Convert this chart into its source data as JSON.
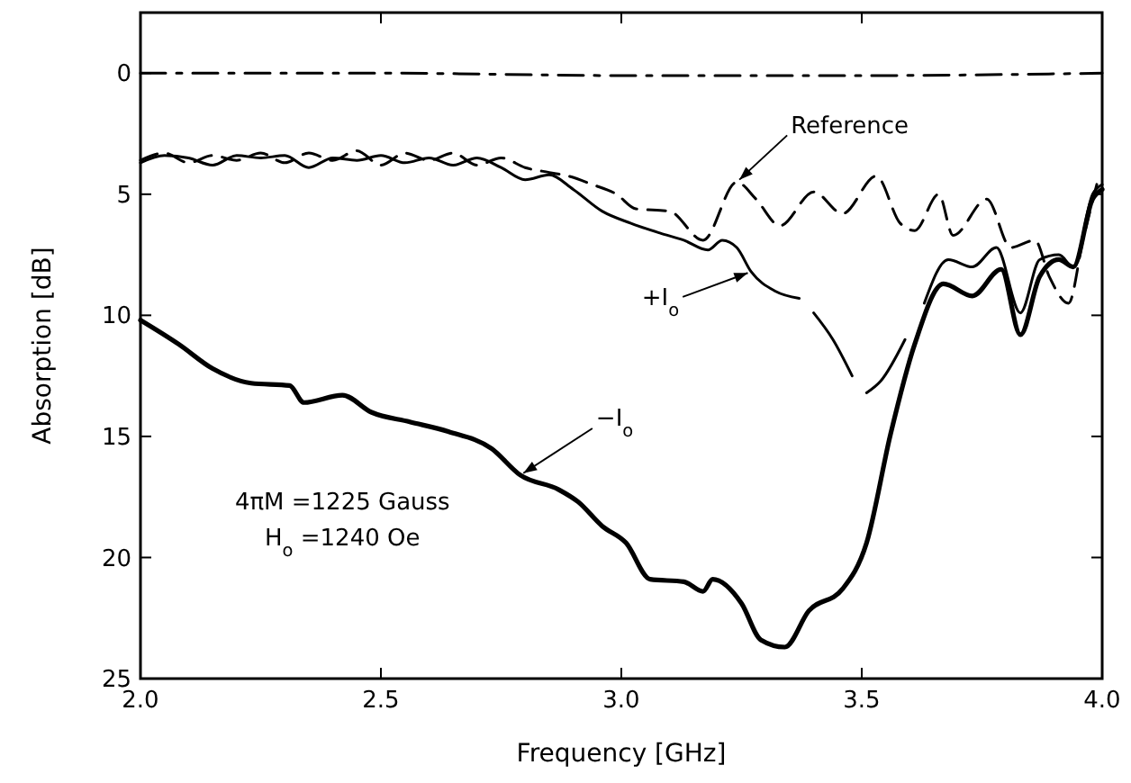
{
  "chart_data": {
    "type": "line",
    "xlabel": "Frequency [GHz]",
    "ylabel": "Absorption [dB]",
    "xlim": [
      2.0,
      4.0
    ],
    "xticks": [
      {
        "value": 2.0,
        "label": "2.0"
      },
      2.5,
      {
        "value": 3.0,
        "label": "3.0"
      },
      3.5,
      {
        "value": 4.0,
        "label": "4.0"
      }
    ],
    "ylim": [
      25,
      -2.5
    ],
    "yticks": [
      0,
      5,
      10,
      15,
      20,
      25
    ],
    "grid": false,
    "series": [
      {
        "color": "#000000",
        "line_style": "dashdot",
        "x": [
          2.0,
          2.5,
          3.0,
          3.5,
          4.0
        ],
        "values": [
          0,
          0,
          0.1,
          0.1,
          0
        ]
      },
      {
        "color": "#000000",
        "line_style": "dashed",
        "x": [
          2.0,
          2.05,
          2.1,
          2.15,
          2.2,
          2.25,
          2.3,
          2.35,
          2.4,
          2.45,
          2.5,
          2.55,
          2.6,
          2.65,
          2.7,
          2.75,
          2.8,
          2.85,
          2.89,
          2.94,
          2.99,
          3.03,
          3.1,
          3.17,
          3.24,
          3.28,
          3.33,
          3.4,
          3.46,
          3.53,
          3.58,
          3.61,
          3.66,
          3.69,
          3.76,
          3.81,
          3.86,
          3.89,
          3.93,
          3.96,
          3.99
        ],
        "values": [
          3.6,
          3.3,
          3.7,
          3.4,
          3.6,
          3.3,
          3.7,
          3.3,
          3.6,
          3.2,
          3.8,
          3.3,
          3.6,
          3.3,
          3.8,
          3.5,
          3.9,
          4.1,
          4.25,
          4.6,
          5.0,
          5.6,
          5.7,
          6.9,
          4.5,
          5.2,
          6.3,
          4.9,
          5.8,
          4.25,
          6.2,
          6.5,
          5.0,
          6.7,
          5.2,
          7.2,
          6.9,
          8.4,
          9.5,
          6.9,
          4.5
        ]
      },
      {
        "color": "#000000",
        "line_style": "solid",
        "x": [
          2.0,
          2.05,
          2.1,
          2.15,
          2.2,
          2.25,
          2.3,
          2.35,
          2.4,
          2.45,
          2.5,
          2.55,
          2.6,
          2.65,
          2.7,
          2.75,
          2.8,
          2.85,
          2.9,
          2.96,
          3.02,
          3.08,
          3.13,
          3.18,
          3.21,
          3.24,
          3.27,
          3.32,
          3.37,
          3.385,
          3.4,
          3.44,
          3.48,
          3.495,
          3.51,
          3.54,
          3.59,
          3.61,
          3.63,
          3.68,
          3.73,
          3.78,
          3.83,
          3.87,
          3.91,
          3.94,
          3.98,
          4.0
        ],
        "values": [
          3.7,
          3.4,
          3.5,
          3.8,
          3.4,
          3.5,
          3.4,
          3.9,
          3.5,
          3.6,
          3.4,
          3.7,
          3.5,
          3.8,
          3.5,
          3.9,
          4.4,
          4.2,
          4.8,
          5.7,
          6.2,
          6.6,
          6.9,
          7.3,
          6.9,
          7.2,
          8.2,
          9.0,
          9.3,
          null,
          9.9,
          11.0,
          12.5,
          null,
          13.2,
          12.7,
          11.0,
          null,
          9.5,
          7.7,
          8.0,
          7.2,
          9.9,
          7.7,
          7.5,
          8.0,
          5.0,
          4.6
        ]
      },
      {
        "color": "#000000",
        "line_style": "solid",
        "x": [
          2.0,
          2.08,
          2.15,
          2.23,
          2.31,
          2.34,
          2.42,
          2.48,
          2.56,
          2.64,
          2.73,
          2.79,
          2.87,
          2.91,
          2.96,
          3.01,
          3.06,
          3.13,
          3.17,
          3.19,
          3.25,
          3.29,
          3.34,
          3.39,
          3.46,
          3.51,
          3.56,
          3.61,
          3.67,
          3.73,
          3.79,
          3.83,
          3.87,
          3.91,
          3.94,
          3.98,
          4.0
        ],
        "values": [
          10.2,
          11.2,
          12.2,
          12.8,
          12.9,
          13.6,
          13.3,
          14.0,
          14.4,
          14.8,
          15.5,
          16.6,
          17.2,
          17.7,
          18.7,
          19.4,
          20.9,
          21.0,
          21.4,
          20.9,
          21.9,
          23.4,
          23.7,
          22.2,
          21.3,
          19.4,
          14.9,
          11.2,
          8.7,
          9.2,
          8.1,
          10.8,
          8.4,
          7.7,
          8.0,
          5.2,
          4.8
        ]
      }
    ],
    "annotations": [
      {
        "text": "Reference",
        "x": 3.24,
        "y": 4.5
      },
      {
        "text": "+I$_{o}$",
        "x": 3.27,
        "y": 8.2
      },
      {
        "text": "−I$_{o}$",
        "x": 2.79,
        "y": 16.6
      },
      "4πM =1225 Gauss",
      "H$_{o}$ =1240 Oe"
    ]
  }
}
